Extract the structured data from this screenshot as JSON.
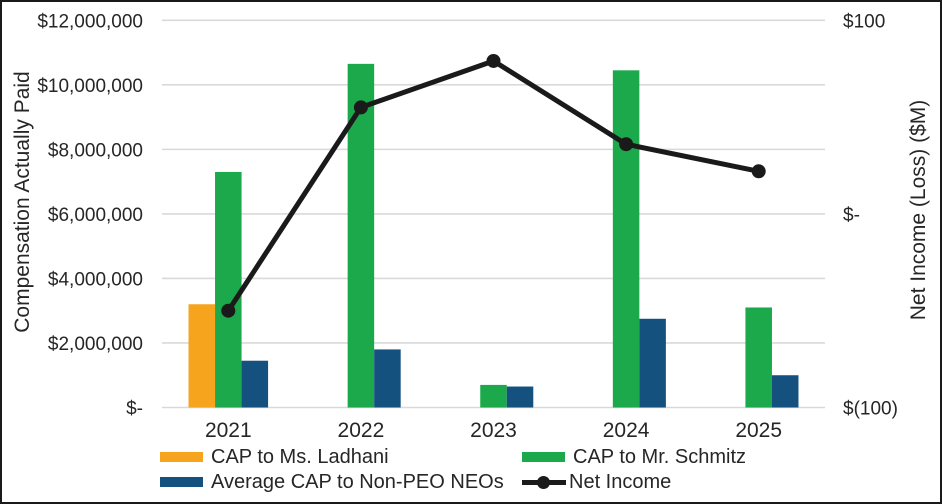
{
  "chart_data": {
    "type": "bar+line",
    "categories": [
      "2021",
      "2022",
      "2023",
      "2024",
      "2025"
    ],
    "bar_series": [
      {
        "name": "CAP to Ms. Ladhani",
        "color": "#F6A31E",
        "axis": "left",
        "values": [
          3200000,
          0,
          0,
          0,
          0
        ]
      },
      {
        "name": "CAP to Mr. Schmitz",
        "color": "#1CA94C",
        "axis": "left",
        "values": [
          7300000,
          10650000,
          700000,
          10450000,
          3100000
        ]
      },
      {
        "name": "Average CAP to Non-PEO NEOs",
        "color": "#15517F",
        "axis": "left",
        "values": [
          1450000,
          1800000,
          650000,
          2750000,
          1000000
        ]
      }
    ],
    "line_series": {
      "name": "Net Income",
      "color": "#1A1A1A",
      "axis": "right",
      "values": [
        -50,
        55,
        79,
        36,
        22
      ]
    },
    "left_axis": {
      "title": "Compensation Actually Paid",
      "min": 0,
      "max": 12000000,
      "tick_interval": 2000000,
      "tick_labels_top_to_bottom": [
        "$12,000,000",
        "$10,000,000",
        "$8,000,000",
        "$6,000,000",
        "$4,000,000",
        "$2,000,000",
        "$-"
      ]
    },
    "right_axis": {
      "title": "Net Income (Loss) ($M)",
      "min": -100,
      "max": 100,
      "ticks": [
        {
          "label": "$100",
          "value": 100
        },
        {
          "label": "$-",
          "value": 0
        },
        {
          "label": "$(100)",
          "value": -100
        }
      ]
    },
    "grid": true,
    "legend": {
      "position": "bottom",
      "items": [
        {
          "label": "CAP to Ms. Ladhani",
          "color": "#F6A31E",
          "marker": "rect"
        },
        {
          "label": "CAP to Mr. Schmitz",
          "color": "#1CA94C",
          "marker": "rect"
        },
        {
          "label": "Average CAP to Non-PEO NEOs",
          "color": "#15517F",
          "marker": "rect"
        },
        {
          "label": "Net Income",
          "color": "#1A1A1A",
          "marker": "line-dot"
        }
      ]
    },
    "colors": {
      "grid": "#D9D9D9",
      "text": "#262626",
      "background": "#FFFFFF",
      "border": "#1A1A1A"
    }
  }
}
